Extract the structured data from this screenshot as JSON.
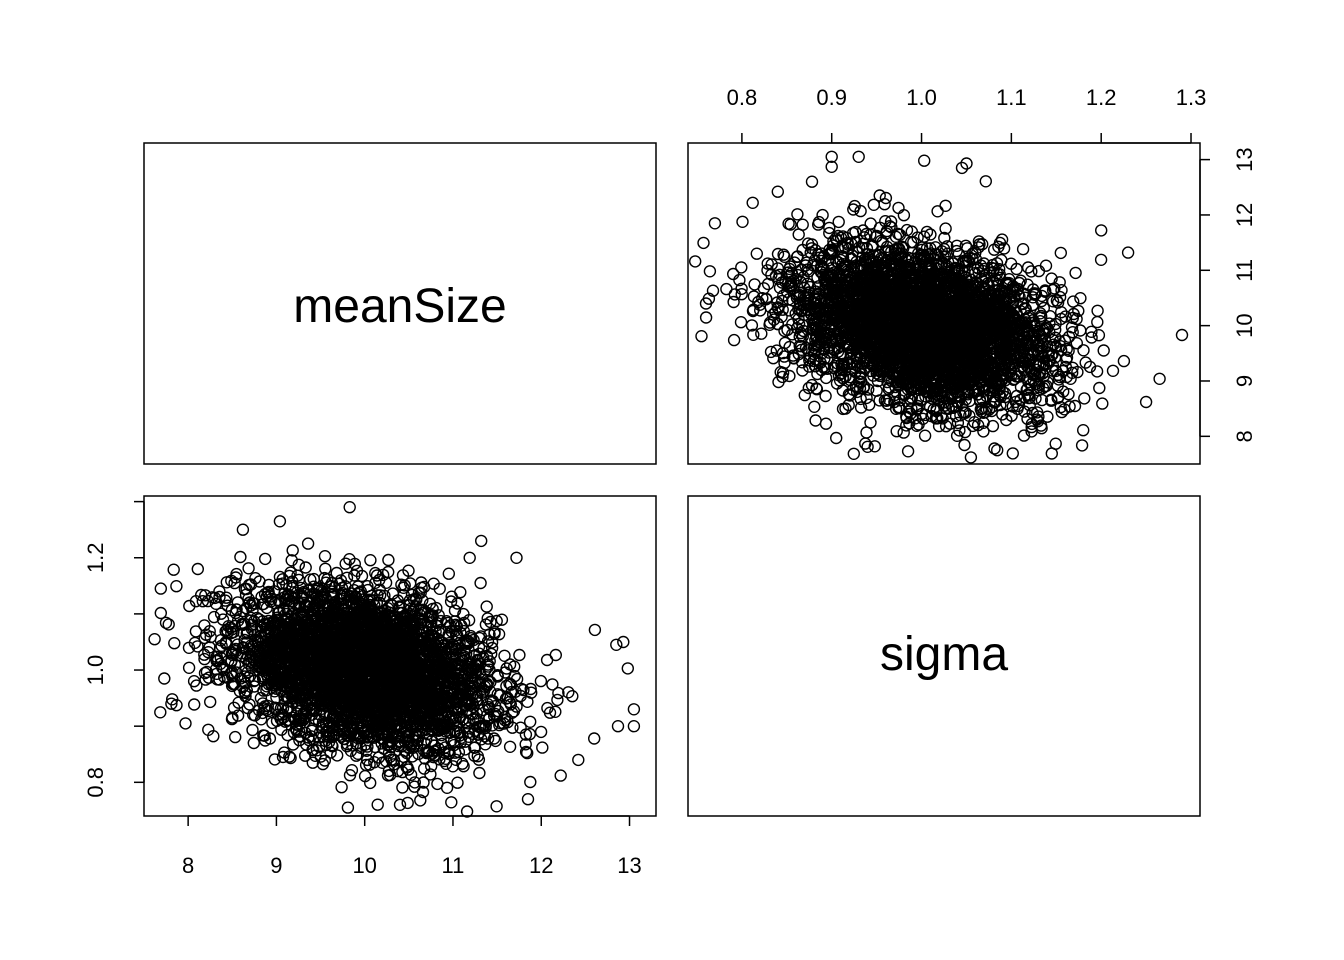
{
  "chart_data": {
    "type": "scatter",
    "layout": "pairs-matrix",
    "variables": [
      "meanSize",
      "sigma"
    ],
    "diagonal_labels": {
      "meanSize": "meanSize",
      "sigma": "sigma"
    },
    "axes": {
      "meanSize": {
        "range": [
          7.5,
          13.3
        ],
        "ticks": [
          8,
          9,
          10,
          11,
          12,
          13
        ],
        "tick_labels": [
          "8",
          "9",
          "10",
          "11",
          "12",
          "13"
        ]
      },
      "sigma": {
        "range": [
          0.74,
          1.31
        ],
        "ticks": [
          0.8,
          0.9,
          1.0,
          1.1,
          1.2,
          1.3
        ],
        "tick_labels": [
          "0.8",
          "0.9",
          "1.0",
          "1.1",
          "1.2",
          "1.3"
        ],
        "left_tick_labels": [
          "0.8",
          "1.0",
          "1.2"
        ]
      }
    },
    "cloud": {
      "meanSize_center": 10.0,
      "meanSize_sd": 0.72,
      "sigma_center": 1.0,
      "sigma_sd": 0.072,
      "correlation": -0.3,
      "n_points": 4000
    },
    "outliers": [
      {
        "meanSize": 7.62,
        "sigma": 1.055
      },
      {
        "meanSize": 7.69,
        "sigma": 1.145
      },
      {
        "meanSize": 7.73,
        "sigma": 0.985
      },
      {
        "meanSize": 7.81,
        "sigma": 0.94
      },
      {
        "meanSize": 7.97,
        "sigma": 0.905
      },
      {
        "meanSize": 8.11,
        "sigma": 1.18
      },
      {
        "meanSize": 8.62,
        "sigma": 1.25
      },
      {
        "meanSize": 9.04,
        "sigma": 1.265
      },
      {
        "meanSize": 9.83,
        "sigma": 1.29
      },
      {
        "meanSize": 9.81,
        "sigma": 0.755
      },
      {
        "meanSize": 10.4,
        "sigma": 0.76
      },
      {
        "meanSize": 11.16,
        "sigma": 0.748
      },
      {
        "meanSize": 11.85,
        "sigma": 0.77
      },
      {
        "meanSize": 12.22,
        "sigma": 0.812
      },
      {
        "meanSize": 12.42,
        "sigma": 0.84
      },
      {
        "meanSize": 12.6,
        "sigma": 0.878
      },
      {
        "meanSize": 12.85,
        "sigma": 1.045
      },
      {
        "meanSize": 12.93,
        "sigma": 1.05
      },
      {
        "meanSize": 12.98,
        "sigma": 1.003
      },
      {
        "meanSize": 13.05,
        "sigma": 0.93
      },
      {
        "meanSize": 13.05,
        "sigma": 0.9
      },
      {
        "meanSize": 12.87,
        "sigma": 0.9
      },
      {
        "meanSize": 11.32,
        "sigma": 1.23
      },
      {
        "meanSize": 11.72,
        "sigma": 1.2
      }
    ]
  }
}
